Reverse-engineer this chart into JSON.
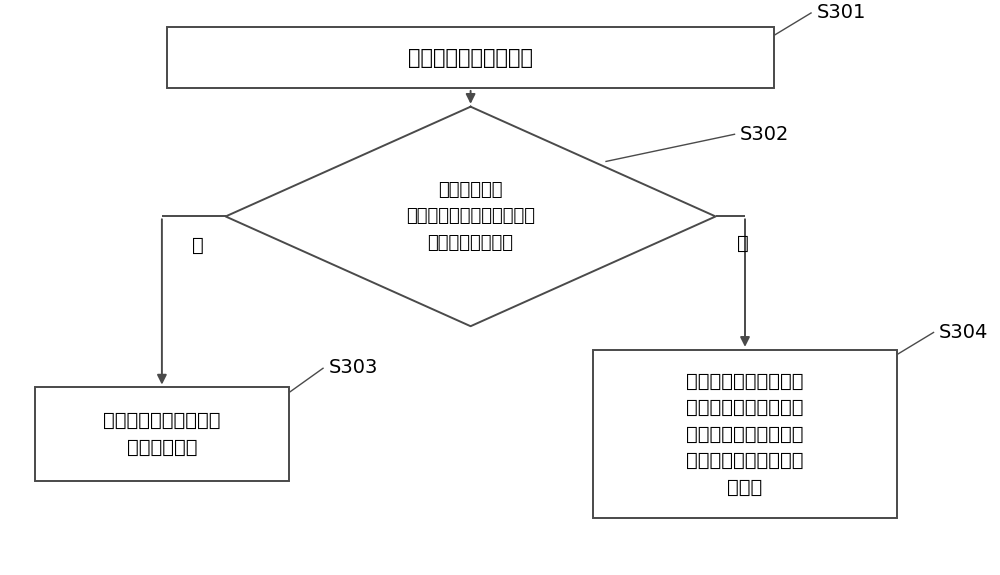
{
  "bg_color": "#ffffff",
  "box_color": "#ffffff",
  "box_edge_color": "#4a4a4a",
  "line_color": "#4a4a4a",
  "text_color": "#000000",
  "font_size": 15,
  "label_font_size": 14,
  "step_font_size": 14,
  "s301_label": "S301",
  "s302_label": "S302",
  "s303_label": "S303",
  "s304_label": "S304",
  "box1_text": "获取整车原始采样数据",
  "diamond_line1": "判断所述原始",
  "diamond_line2": "采样数据中参数的单位是否",
  "diamond_line3": "是预设的标准单位",
  "box3_line1": "保持所述原始采样数据",
  "box3_line2": "中参数的单位",
  "box4_line1": "将所述参数的数值乘以",
  "box4_line2": "转换系数，并将所述原",
  "box4_line3": "始采样数据中参数的单",
  "box4_line4": "位转换为所述预设的标",
  "box4_line5": "准单元",
  "yes_label": "是",
  "no_label": "否"
}
